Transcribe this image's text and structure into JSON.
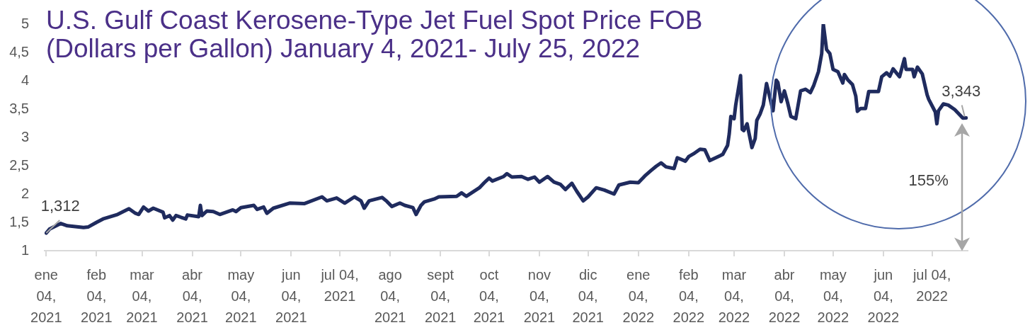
{
  "chart_data": {
    "type": "line",
    "title": "U.S. Gulf Coast Kerosene-Type Jet Fuel Spot Price FOB (Dollars per Gallon) January 4, 2021- July 25, 2022",
    "x": [
      "2021-01-04",
      "2021-01-06",
      "2021-01-13",
      "2021-01-17",
      "2021-01-27",
      "2021-01-30",
      "2021-02-04",
      "2021-02-08",
      "2021-02-17",
      "2021-02-24",
      "2021-02-28",
      "2021-03-02",
      "2021-03-05",
      "2021-03-08",
      "2021-03-11",
      "2021-03-17",
      "2021-03-18",
      "2021-03-21",
      "2021-03-23",
      "2021-03-25",
      "2021-03-31",
      "2021-04-01",
      "2021-04-08",
      "2021-04-09",
      "2021-04-10",
      "2021-04-13",
      "2021-04-17",
      "2021-04-21",
      "2021-04-29",
      "2021-05-01",
      "2021-05-04",
      "2021-05-12",
      "2021-05-14",
      "2021-05-18",
      "2021-05-20",
      "2021-05-24",
      "2021-06-03",
      "2021-06-12",
      "2021-06-23",
      "2021-06-26",
      "2021-07-02",
      "2021-07-07",
      "2021-07-13",
      "2021-07-17",
      "2021-07-19",
      "2021-07-22",
      "2021-07-30",
      "2021-08-02",
      "2021-08-05",
      "2021-08-10",
      "2021-08-13",
      "2021-08-18",
      "2021-08-20",
      "2021-08-23",
      "2021-08-25",
      "2021-08-31",
      "2021-09-03",
      "2021-09-14",
      "2021-09-17",
      "2021-09-20",
      "2021-09-28",
      "2021-10-01",
      "2021-10-04",
      "2021-10-06",
      "2021-10-13",
      "2021-10-15",
      "2021-10-18",
      "2021-10-24",
      "2021-10-28",
      "2021-11-01",
      "2021-11-04",
      "2021-11-09",
      "2021-11-13",
      "2021-11-17",
      "2021-11-20",
      "2021-11-24",
      "2021-11-27",
      "2021-12-01",
      "2021-12-04",
      "2021-12-09",
      "2021-12-14",
      "2021-12-20",
      "2021-12-23",
      "2021-12-30",
      "2022-01-04",
      "2022-01-08",
      "2022-01-12",
      "2022-01-15",
      "2022-01-18",
      "2022-01-21",
      "2022-01-26",
      "2022-01-28",
      "2022-02-02",
      "2022-02-04",
      "2022-02-07",
      "2022-02-11",
      "2022-02-14",
      "2022-02-17",
      "2022-02-25",
      "2022-02-28",
      "2022-03-01",
      "2022-03-02",
      "2022-03-04",
      "2022-03-05",
      "2022-03-08",
      "2022-03-09",
      "2022-03-10",
      "2022-03-12",
      "2022-03-15",
      "2022-03-17",
      "2022-03-18",
      "2022-03-20",
      "2022-03-22",
      "2022-03-24",
      "2022-03-26",
      "2022-03-28",
      "2022-03-30",
      "2022-03-31",
      "2022-04-02",
      "2022-04-04",
      "2022-04-06",
      "2022-04-08",
      "2022-04-11",
      "2022-04-14",
      "2022-04-17",
      "2022-04-20",
      "2022-04-22",
      "2022-04-25",
      "2022-04-27",
      "2022-04-28",
      "2022-04-30",
      "2022-05-02",
      "2022-05-04",
      "2022-05-07",
      "2022-05-10",
      "2022-05-11",
      "2022-05-13",
      "2022-05-16",
      "2022-05-18",
      "2022-05-19",
      "2022-05-21",
      "2022-05-24",
      "2022-05-26",
      "2022-06-01",
      "2022-06-03",
      "2022-06-06",
      "2022-06-08",
      "2022-06-10",
      "2022-06-12",
      "2022-06-14",
      "2022-06-17",
      "2022-06-18",
      "2022-06-22",
      "2022-06-23",
      "2022-06-25",
      "2022-06-28",
      "2022-07-01",
      "2022-07-02",
      "2022-07-06",
      "2022-07-07",
      "2022-07-08",
      "2022-07-11",
      "2022-07-14",
      "2022-07-18",
      "2022-07-23",
      "2022-07-25"
    ],
    "values": [
      1.312,
      1.38,
      1.48,
      1.44,
      1.41,
      1.42,
      1.5,
      1.56,
      1.64,
      1.74,
      1.66,
      1.64,
      1.77,
      1.7,
      1.75,
      1.68,
      1.58,
      1.62,
      1.54,
      1.62,
      1.56,
      1.63,
      1.6,
      1.8,
      1.62,
      1.7,
      1.69,
      1.64,
      1.72,
      1.69,
      1.76,
      1.8,
      1.73,
      1.77,
      1.66,
      1.75,
      1.84,
      1.83,
      1.95,
      1.88,
      1.93,
      1.84,
      1.95,
      1.88,
      1.75,
      1.88,
      1.94,
      1.87,
      1.78,
      1.84,
      1.8,
      1.76,
      1.64,
      1.8,
      1.86,
      1.91,
      1.95,
      1.96,
      2.02,
      1.96,
      2.11,
      2.2,
      2.28,
      2.23,
      2.31,
      2.36,
      2.3,
      2.31,
      2.26,
      2.3,
      2.21,
      2.31,
      2.21,
      2.17,
      2.08,
      2.19,
      2.05,
      1.88,
      1.95,
      2.11,
      2.07,
      2.0,
      2.16,
      2.21,
      2.2,
      2.32,
      2.42,
      2.49,
      2.55,
      2.48,
      2.45,
      2.64,
      2.58,
      2.66,
      2.71,
      2.79,
      2.78,
      2.59,
      2.7,
      2.86,
      3.06,
      3.37,
      3.33,
      3.57,
      4.09,
      3.14,
      3.12,
      3.24,
      2.82,
      2.98,
      3.3,
      3.41,
      3.57,
      3.95,
      3.71,
      3.47,
      4.01,
      3.97,
      3.63,
      3.82,
      3.61,
      3.37,
      3.33,
      3.82,
      3.85,
      3.79,
      3.91,
      4.16,
      4.48,
      5.0,
      4.55,
      4.48,
      4.2,
      4.16,
      3.96,
      4.11,
      4.02,
      3.93,
      3.73,
      3.46,
      3.51,
      3.51,
      3.81,
      3.81,
      4.07,
      4.14,
      4.08,
      4.21,
      4.14,
      4.07,
      4.39,
      4.2,
      4.2,
      4.07,
      4.24,
      4.12,
      3.75,
      3.67,
      3.45,
      3.24,
      3.47,
      3.59,
      3.57,
      3.49,
      3.34,
      3.343
    ],
    "color": "#1f2b5e",
    "xlim": [
      "2021-01-03",
      "2022-07-26"
    ],
    "xticks": [
      {
        "value": "2021-01-04",
        "label": "ene 04, 2021"
      },
      {
        "value": "2021-02-04",
        "label": "feb 04, 2021"
      },
      {
        "value": "2021-03-04",
        "label": "mar 04, 2021"
      },
      {
        "value": "2021-04-04",
        "label": "abr 04, 2021"
      },
      {
        "value": "2021-05-04",
        "label": "may 04, 2021"
      },
      {
        "value": "2021-06-04",
        "label": "jun 04, 2021"
      },
      {
        "value": "2021-07-04",
        "label": "jul 04, 2021"
      },
      {
        "value": "2021-08-04",
        "label": "ago 04, 2021"
      },
      {
        "value": "2021-09-04",
        "label": "sept 04, 2021"
      },
      {
        "value": "2021-10-04",
        "label": "oct 04, 2021"
      },
      {
        "value": "2021-11-04",
        "label": "nov 04, 2021"
      },
      {
        "value": "2021-12-04",
        "label": "dic 04, 2021"
      },
      {
        "value": "2022-01-04",
        "label": "ene 04, 2022"
      },
      {
        "value": "2022-02-04",
        "label": "feb 04, 2022"
      },
      {
        "value": "2022-03-04",
        "label": "mar 04, 2022"
      },
      {
        "value": "2022-04-04",
        "label": "abr 04, 2022"
      },
      {
        "value": "2022-05-04",
        "label": "may 04, 2022"
      },
      {
        "value": "2022-06-04",
        "label": "jun 04, 2022"
      },
      {
        "value": "2022-07-04",
        "label": "jul 04, 2022"
      }
    ],
    "ylim": [
      1,
      5
    ],
    "yticks": [
      1,
      {
        "value": 1.5,
        "label": "1,5"
      },
      2,
      {
        "value": 2.5,
        "label": "2,5"
      },
      3,
      {
        "value": 3.5,
        "label": "3,5"
      },
      4,
      {
        "value": 4.5,
        "label": "4,5"
      },
      5
    ],
    "annotations": [
      {
        "text": "1,312",
        "x": "2021-01-04",
        "y": 1.312
      },
      {
        "text": "3,343",
        "x": "2022-07-25",
        "y": 3.343
      },
      "155%"
    ]
  }
}
